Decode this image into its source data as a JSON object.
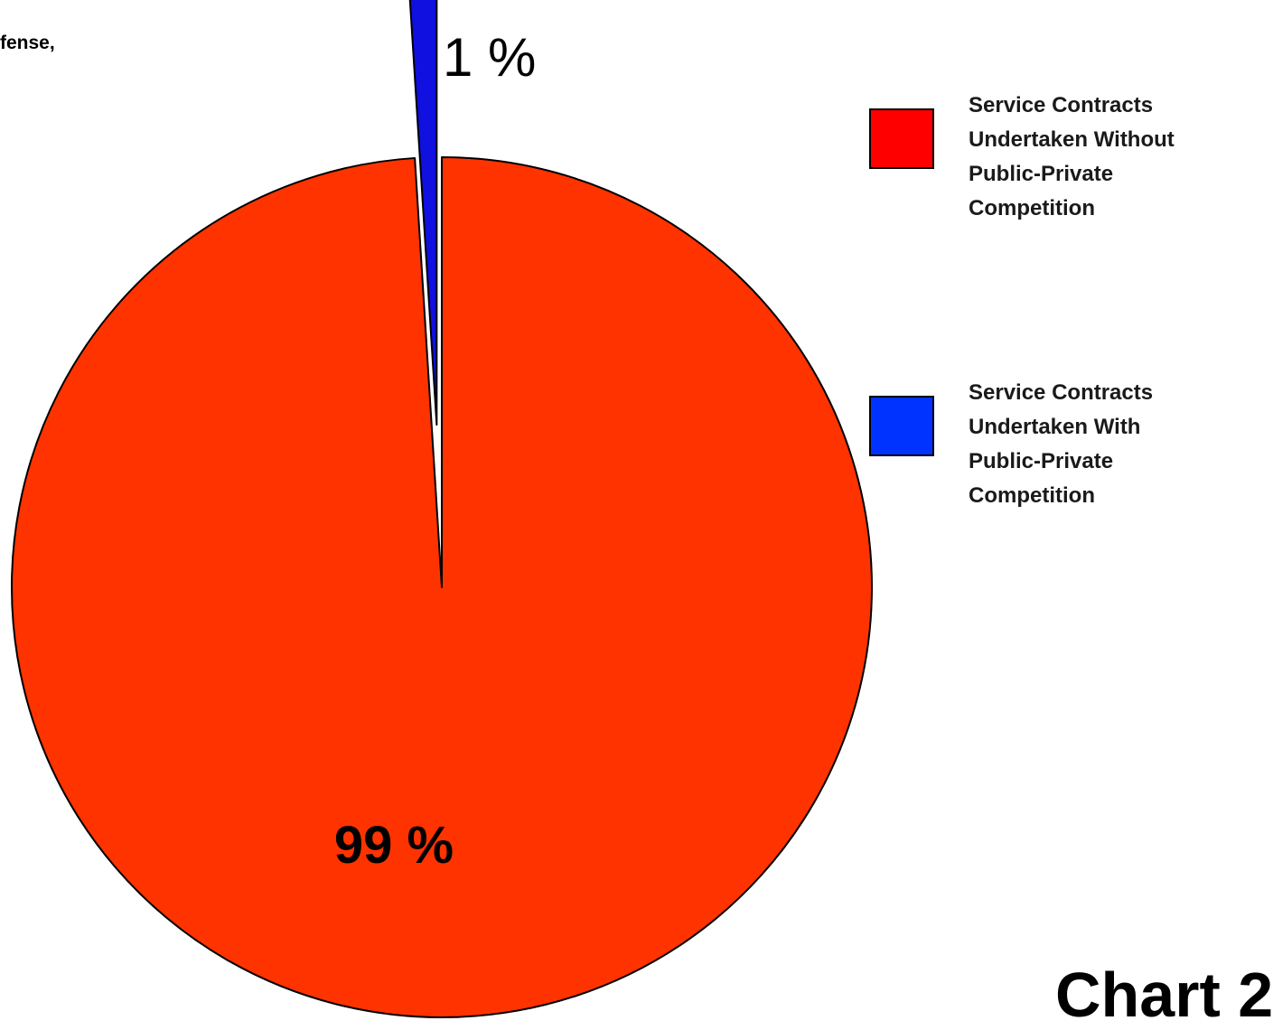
{
  "header": {
    "clipped_caption": "fense,"
  },
  "footer": {
    "clipped_label": "Chart 2"
  },
  "chart_data": {
    "type": "pie",
    "title": "",
    "slices": [
      {
        "label": "Service Contracts\nUndertaken Without\nPublic-Private\nCompetition",
        "value": 99,
        "value_label": "99 %",
        "color": "#ff3300",
        "legend_color": "#ff0000",
        "exploded": false
      },
      {
        "label": "Service Contracts\nUndertaken With\nPublic-Private\nCompetition",
        "value": 1,
        "value_label": "1 %",
        "color": "#1010e0",
        "legend_color": "#0033ff",
        "exploded": true
      }
    ],
    "legend_placement": "right",
    "start_angle": "top",
    "direction": "clockwise"
  }
}
